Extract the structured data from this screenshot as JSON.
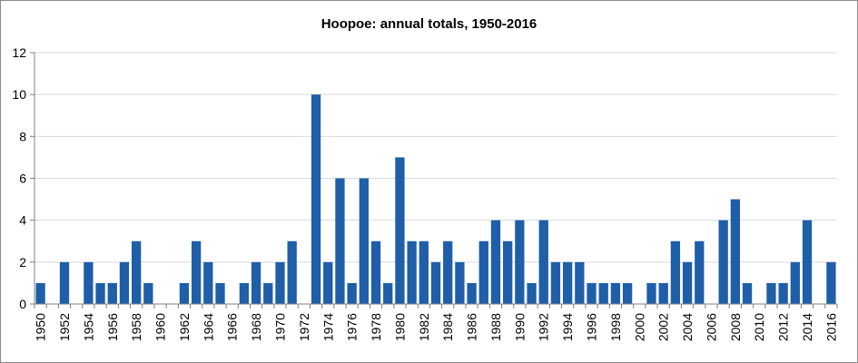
{
  "colors": {
    "bar": "#1f5ea8",
    "grid": "#d9d9d9",
    "axis": "#808080",
    "text": "#000000"
  },
  "chart_data": {
    "type": "bar",
    "title": "Hoopoe: annual totals, 1950-2016",
    "xlabel": "",
    "ylabel": "",
    "ylim": [
      0,
      12
    ],
    "yticks": [
      0,
      2,
      4,
      6,
      8,
      10,
      12
    ],
    "grid": true,
    "legend": "none",
    "x_tick_labels": [
      "1950",
      "1952",
      "1954",
      "1956",
      "1958",
      "1960",
      "1962",
      "1964",
      "1966",
      "1968",
      "1970",
      "1972",
      "1974",
      "1976",
      "1978",
      "1980",
      "1982",
      "1984",
      "1986",
      "1988",
      "1990",
      "1992",
      "1994",
      "1996",
      "1998",
      "2000",
      "2002",
      "2004",
      "2006",
      "2008",
      "2010",
      "2012",
      "2014",
      "2016"
    ],
    "categories": [
      1950,
      1951,
      1952,
      1953,
      1954,
      1955,
      1956,
      1957,
      1958,
      1959,
      1960,
      1961,
      1962,
      1963,
      1964,
      1965,
      1966,
      1967,
      1968,
      1969,
      1970,
      1971,
      1972,
      1973,
      1974,
      1975,
      1976,
      1977,
      1978,
      1979,
      1980,
      1981,
      1982,
      1983,
      1984,
      1985,
      1986,
      1987,
      1988,
      1989,
      1990,
      1991,
      1992,
      1993,
      1994,
      1995,
      1996,
      1997,
      1998,
      1999,
      2000,
      2001,
      2002,
      2003,
      2004,
      2005,
      2006,
      2007,
      2008,
      2009,
      2010,
      2011,
      2012,
      2013,
      2014,
      2015,
      2016
    ],
    "values": [
      1,
      0,
      2,
      0,
      2,
      1,
      1,
      2,
      3,
      1,
      0,
      0,
      1,
      3,
      2,
      1,
      0,
      1,
      2,
      1,
      2,
      3,
      0,
      10,
      2,
      6,
      1,
      6,
      3,
      1,
      7,
      3,
      3,
      2,
      3,
      2,
      1,
      3,
      4,
      3,
      4,
      1,
      4,
      2,
      2,
      2,
      1,
      1,
      1,
      1,
      0,
      1,
      1,
      3,
      2,
      3,
      0,
      4,
      5,
      1,
      0,
      1,
      1,
      2,
      4,
      0,
      2
    ]
  }
}
